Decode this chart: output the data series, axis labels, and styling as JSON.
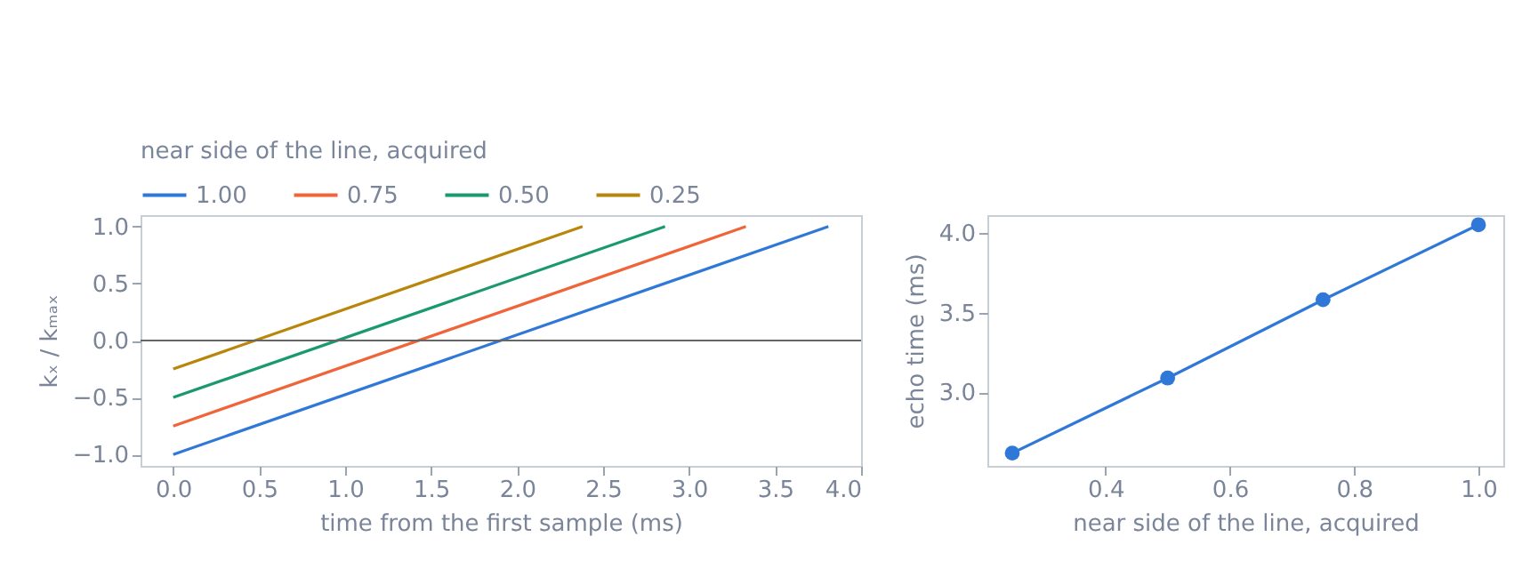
{
  "chart_data": [
    {
      "type": "line",
      "xlabel": "time from the first sample (ms)",
      "ylabel": "kₓ / kₘₐₓ",
      "legend_title": "near side of the line, acquired",
      "legend": "top",
      "grid": false,
      "xlim": [
        -0.19,
        4.0
      ],
      "xticks": [
        {
          "value": 0,
          "label": "0.0"
        },
        0.5,
        {
          "value": 1,
          "label": "1.0"
        },
        1.5,
        {
          "value": 2,
          "label": "2.0"
        },
        2.5,
        {
          "value": 3,
          "label": "3.0"
        },
        3.5,
        {
          "value": 4,
          "label": "4.0"
        }
      ],
      "ylim": [
        -1.1,
        1.1
      ],
      "yticks": [
        {
          "value": -1,
          "label": "−1.0"
        },
        {
          "value": -0.5,
          "label": "−0.5"
        },
        {
          "value": 0,
          "label": "0.0"
        },
        0.5,
        {
          "value": 1,
          "label": "1.0"
        }
      ],
      "ref_lines": [
        {
          "axis": "y",
          "value": 0,
          "color": "#666666"
        }
      ],
      "series": [
        {
          "name": "1.00",
          "color": "#2f78d8",
          "x": [
            0,
            3.81
          ],
          "values": [
            -1,
            1
          ]
        },
        {
          "name": "0.75",
          "color": "#f0643a",
          "x": [
            0,
            3.33
          ],
          "values": [
            -0.75,
            1
          ]
        },
        {
          "name": "0.50",
          "color": "#1a9970",
          "x": [
            0,
            2.86
          ],
          "values": [
            -0.5,
            1
          ]
        },
        {
          "name": "0.25",
          "color": "#b8860b",
          "x": [
            0,
            2.38
          ],
          "values": [
            -0.25,
            1
          ]
        }
      ]
    },
    {
      "type": "line",
      "marker": "circle",
      "xlabel": "near side of the line, acquired",
      "ylabel": "echo time (ms)",
      "grid": false,
      "xlim": [
        0.21,
        1.04
      ],
      "xticks": [
        0.4,
        0.6,
        0.8,
        {
          "value": 1,
          "label": "1.0"
        }
      ],
      "ylim": [
        2.54,
        4.11
      ],
      "yticks": [
        {
          "value": 3,
          "label": "3.0"
        },
        3.5,
        {
          "value": 4,
          "label": "4.0"
        }
      ],
      "x": [
        0.25,
        0.5,
        0.75,
        1.0
      ],
      "series": [
        {
          "color": "#2f78d8",
          "values": [
            2.62,
            3.09,
            3.58,
            4.05
          ]
        }
      ]
    }
  ]
}
